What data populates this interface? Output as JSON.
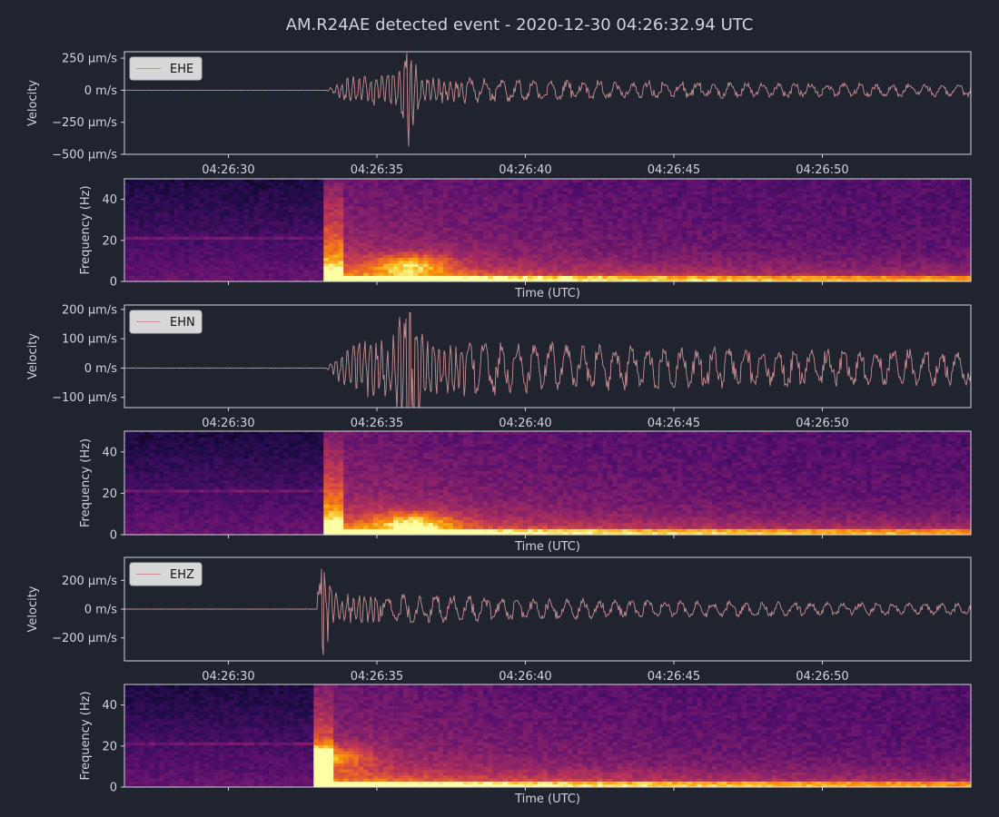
{
  "colors": {
    "background": "#20242e",
    "trace": "#c98f92",
    "frame": "#d0d3da",
    "text": "#d0d3da",
    "legend_bg": "#d8d8d8"
  },
  "chart_data": {
    "type": "line",
    "title": "AM.R24AE detected event - 2020-12-30 04:26:32.94 UTC",
    "x_range_seconds": [
      26.5,
      55.0
    ],
    "x_tick_labels": [
      "04:26:30",
      "04:26:35",
      "04:26:40",
      "04:26:45",
      "04:26:50"
    ],
    "x_tick_values": [
      30,
      35,
      40,
      45,
      50
    ],
    "panels": [
      {
        "kind": "waveform",
        "channel": "EHE",
        "ylabel": "Velocity",
        "ylim": [
          -500,
          300
        ],
        "y_ticks": [
          250,
          0,
          -250,
          -500
        ],
        "y_tick_labels": [
          "250 µm/s",
          "0 m/s",
          "−250 µm/s",
          "−500 µm/s"
        ],
        "onset_s": 33.3,
        "peak_s": 36.0,
        "peak_amplitude": 290,
        "min_amplitude": -440,
        "coda_amplitude": 40,
        "seed": 3
      },
      {
        "kind": "spectrogram",
        "channel": "EHE",
        "xlabel": "Time (UTC)",
        "ylabel": "Frequency (Hz)",
        "ylim": [
          0,
          50
        ],
        "y_ticks": [
          0,
          20,
          40
        ],
        "y_tick_labels": [
          "0",
          "20",
          "40"
        ],
        "onset_s": 33.2,
        "hot_s": 36.2,
        "hot_hz": 8,
        "seed": 11
      },
      {
        "kind": "waveform",
        "channel": "EHN",
        "ylabel": "Velocity",
        "ylim": [
          -135,
          215
        ],
        "y_ticks": [
          200,
          100,
          0,
          -100
        ],
        "y_tick_labels": [
          "200 µm/s",
          "100 µm/s",
          "0 m/s",
          "−100 µm/s"
        ],
        "onset_s": 33.3,
        "peak_s": 36.1,
        "peak_amplitude": 190,
        "min_amplitude": -130,
        "coda_amplitude": 55,
        "seed": 7
      },
      {
        "kind": "spectrogram",
        "channel": "EHN",
        "xlabel": "Time (UTC)",
        "ylabel": "Frequency (Hz)",
        "ylim": [
          0,
          50
        ],
        "y_ticks": [
          0,
          20,
          40
        ],
        "y_tick_labels": [
          "0",
          "20",
          "40"
        ],
        "onset_s": 33.2,
        "hot_s": 36.3,
        "hot_hz": 6,
        "seed": 17
      },
      {
        "kind": "waveform",
        "channel": "EHZ",
        "ylabel": "Velocity",
        "ylim": [
          -360,
          360
        ],
        "y_ticks": [
          200,
          0,
          -200
        ],
        "y_tick_labels": [
          "200 µm/s",
          "0 m/s",
          "−200 µm/s"
        ],
        "onset_s": 33.0,
        "peak_s": 33.15,
        "peak_amplitude": 280,
        "min_amplitude": -320,
        "coda_amplitude": 35,
        "seed": 13
      },
      {
        "kind": "spectrogram",
        "channel": "EHZ",
        "xlabel": "Time (UTC)",
        "ylabel": "Frequency (Hz)",
        "ylim": [
          0,
          50
        ],
        "y_ticks": [
          0,
          20,
          40
        ],
        "y_tick_labels": [
          "0",
          "20",
          "40"
        ],
        "onset_s": 32.9,
        "hot_s": 33.3,
        "hot_hz": 15,
        "seed": 23
      }
    ]
  }
}
